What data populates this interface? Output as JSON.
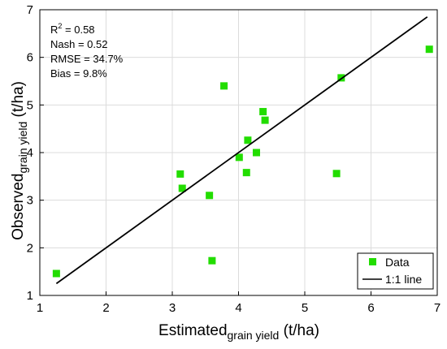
{
  "chart_data": {
    "type": "scatter",
    "xlabel": "Estimated",
    "xlabel_sub": "grain yield",
    "xlabel_unit": " (t/ha)",
    "ylabel": "Observed",
    "ylabel_sub": "grain yield",
    "ylabel_unit": " (t/ha)",
    "xlim": [
      1,
      7
    ],
    "ylim": [
      1,
      7
    ],
    "xticks": [
      1,
      2,
      3,
      4,
      5,
      6,
      7
    ],
    "yticks": [
      1,
      2,
      3,
      4,
      5,
      6,
      7
    ],
    "grid": true,
    "legend_position": "bottom-right",
    "series": [
      {
        "name": "Data",
        "kind": "scatter",
        "marker": "square",
        "color": "#22dd00",
        "points": [
          {
            "x": 1.25,
            "y": 1.46
          },
          {
            "x": 3.12,
            "y": 3.55
          },
          {
            "x": 3.15,
            "y": 3.25
          },
          {
            "x": 3.56,
            "y": 3.1
          },
          {
            "x": 3.6,
            "y": 1.73
          },
          {
            "x": 3.78,
            "y": 5.4
          },
          {
            "x": 4.01,
            "y": 3.9
          },
          {
            "x": 4.12,
            "y": 3.58
          },
          {
            "x": 4.14,
            "y": 4.26
          },
          {
            "x": 4.27,
            "y": 4.0
          },
          {
            "x": 4.37,
            "y": 4.86
          },
          {
            "x": 4.4,
            "y": 4.68
          },
          {
            "x": 5.48,
            "y": 3.56
          },
          {
            "x": 5.55,
            "y": 5.57
          },
          {
            "x": 6.88,
            "y": 6.17
          }
        ]
      },
      {
        "name": "1:1 line",
        "kind": "line",
        "color": "#000000",
        "points": [
          {
            "x": 1.25,
            "y": 1.25
          },
          {
            "x": 6.85,
            "y": 6.85
          }
        ]
      }
    ],
    "stats": {
      "r2_label": "R",
      "r2_sup": "2",
      "r2_value": " = 0.58",
      "nash": "Nash = 0.52",
      "rmse": "RMSE = 34.7%",
      "bias": "Bias = 9.8%"
    }
  }
}
